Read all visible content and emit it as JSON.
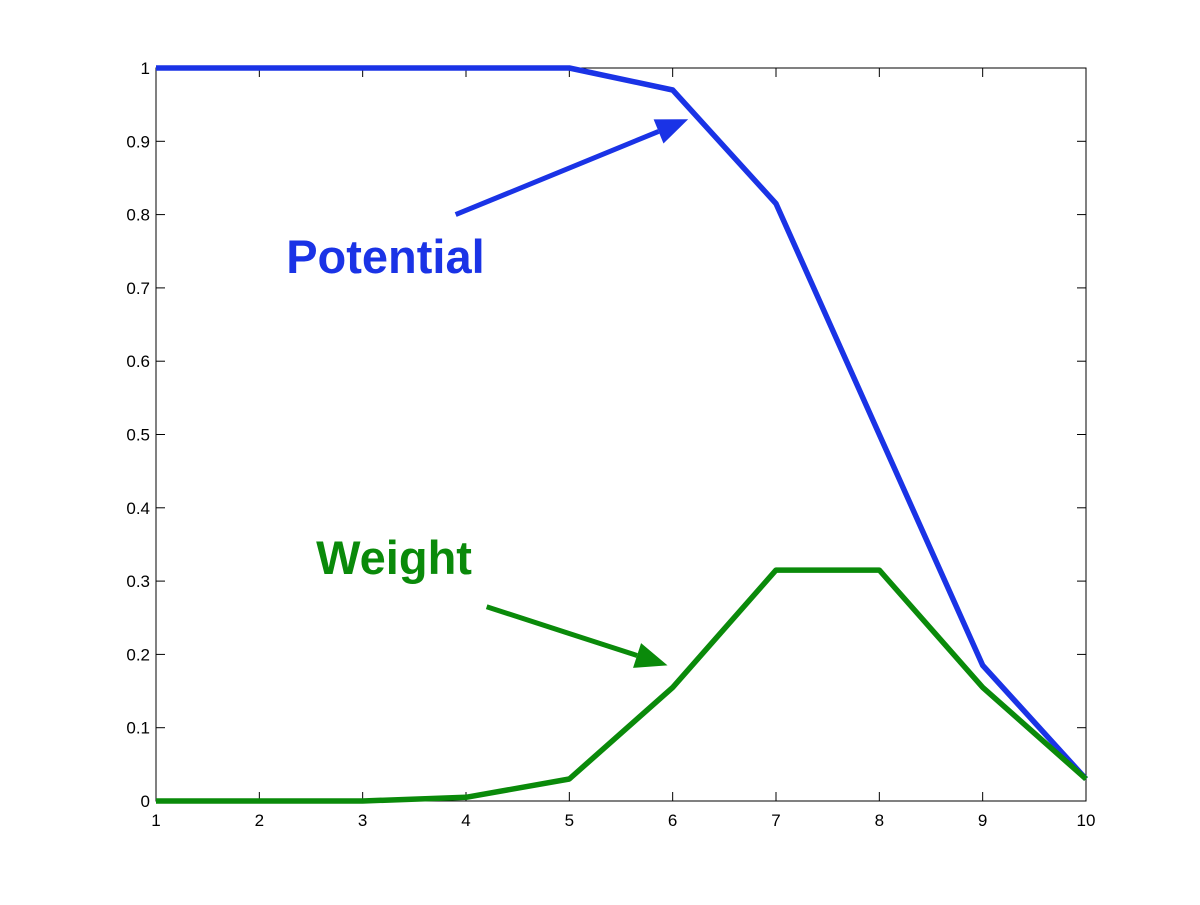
{
  "chart_data": {
    "type": "line",
    "x": [
      1,
      2,
      3,
      4,
      5,
      6,
      7,
      8,
      9,
      10
    ],
    "xlim": [
      1,
      10
    ],
    "ylim": [
      0,
      1
    ],
    "xticks": [
      "1",
      "2",
      "3",
      "4",
      "5",
      "6",
      "7",
      "8",
      "9",
      "10"
    ],
    "yticks": [
      "0",
      "0.1",
      "0.2",
      "0.3",
      "0.4",
      "0.5",
      "0.6",
      "0.7",
      "0.8",
      "0.9",
      "1"
    ],
    "grid": false,
    "series": [
      {
        "name": "Potential",
        "color": "#1a33e6",
        "values": [
          1,
          1,
          1,
          1,
          1,
          0.97,
          0.815,
          0.5,
          0.185,
          0.03
        ]
      },
      {
        "name": "Weight",
        "color": "#0a8a0a",
        "values": [
          0,
          0,
          0,
          0.005,
          0.03,
          0.155,
          0.315,
          0.315,
          0.155,
          0.03
        ]
      }
    ],
    "annotations": [
      {
        "text": "Potential",
        "color": "#1a33e6",
        "text_at": [
          2.26,
          0.72
        ],
        "arrow_from": [
          3.9,
          0.8
        ],
        "arrow_to": [
          6.15,
          0.93
        ]
      },
      {
        "text": "Weight",
        "color": "#0a8a0a",
        "text_at": [
          2.55,
          0.31
        ],
        "arrow_from": [
          4.2,
          0.265
        ],
        "arrow_to": [
          5.95,
          0.185
        ]
      }
    ]
  }
}
